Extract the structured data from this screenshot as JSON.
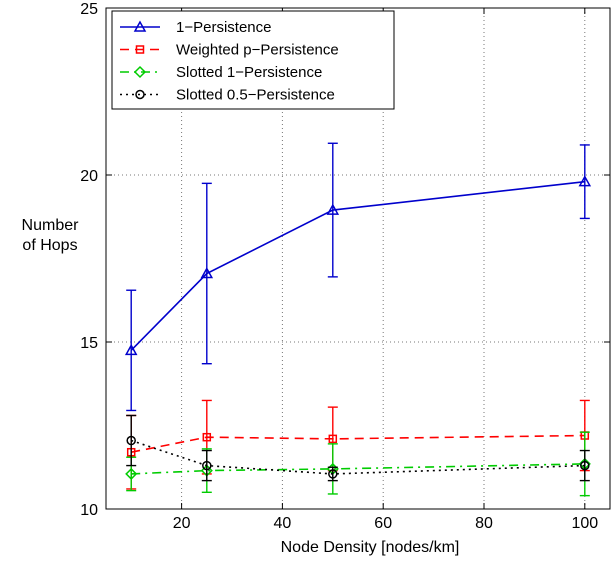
{
  "chart_data": {
    "type": "line",
    "title": "",
    "xlabel": "Node Density [nodes/km]",
    "ylabel_line1": "Number",
    "ylabel_line2": "of Hops",
    "xlim": [
      5,
      105
    ],
    "ylim": [
      10,
      25
    ],
    "xticks": [
      20,
      40,
      60,
      80,
      100
    ],
    "yticks": [
      10,
      15,
      20,
      25
    ],
    "grid": true,
    "legend_position": "top-left",
    "x": [
      10,
      25,
      50,
      100
    ],
    "series": [
      {
        "name": "1−Persistence",
        "color": "#0000cc",
        "dash": "",
        "marker": "triangle",
        "values": [
          14.75,
          17.05,
          18.95,
          19.8
        ],
        "errors": [
          1.8,
          2.7,
          2.0,
          1.1
        ]
      },
      {
        "name": "Weighted p−Persistence",
        "color": "#ff0000",
        "dash": "9,6",
        "marker": "square",
        "values": [
          11.7,
          12.15,
          12.1,
          12.2
        ],
        "errors": [
          1.1,
          1.1,
          0.95,
          1.05
        ]
      },
      {
        "name": "Slotted 1−Persistence",
        "color": "#00cc00",
        "dash": "9,5,2,5",
        "marker": "diamond",
        "values": [
          11.05,
          11.15,
          11.2,
          11.35
        ],
        "errors": [
          0.5,
          0.65,
          0.75,
          0.95
        ]
      },
      {
        "name": "Slotted 0.5−Persistence",
        "color": "#000000",
        "dash": "2,4",
        "marker": "circle",
        "values": [
          12.05,
          11.3,
          11.05,
          11.3
        ],
        "errors": [
          0.75,
          0.45,
          0.2,
          0.45
        ]
      }
    ]
  }
}
